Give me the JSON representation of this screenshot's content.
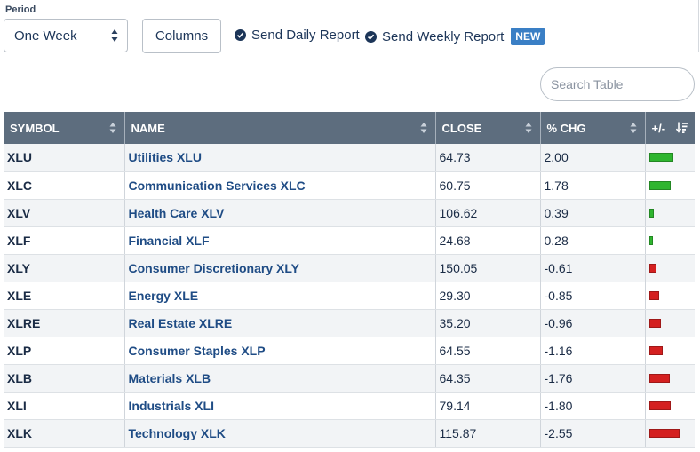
{
  "period": {
    "label": "Period",
    "selected": "One Week"
  },
  "columns_button": "Columns",
  "reports": {
    "daily": "Send Daily Report",
    "weekly": "Send Weekly Report",
    "new_badge": "NEW"
  },
  "search": {
    "placeholder": "Search Table"
  },
  "table": {
    "headers": {
      "symbol": "SYMBOL",
      "name": "NAME",
      "close": "CLOSE",
      "pct_chg": "% CHG",
      "plusminus": "+/-"
    },
    "rows": [
      {
        "symbol": "XLU",
        "name": "Utilities XLU",
        "close": "64.73",
        "pct": "2.00",
        "change": 2.0
      },
      {
        "symbol": "XLC",
        "name": "Communication Services XLC",
        "close": "60.75",
        "pct": "1.78",
        "change": 1.78
      },
      {
        "symbol": "XLV",
        "name": "Health Care XLV",
        "close": "106.62",
        "pct": "0.39",
        "change": 0.39
      },
      {
        "symbol": "XLF",
        "name": "Financial XLF",
        "close": "24.68",
        "pct": "0.28",
        "change": 0.28
      },
      {
        "symbol": "XLY",
        "name": "Consumer Discretionary XLY",
        "close": "150.05",
        "pct": "-0.61",
        "change": -0.61
      },
      {
        "symbol": "XLE",
        "name": "Energy XLE",
        "close": "29.30",
        "pct": "-0.85",
        "change": -0.85
      },
      {
        "symbol": "XLRE",
        "name": "Real Estate XLRE",
        "close": "35.20",
        "pct": "-0.96",
        "change": -0.96
      },
      {
        "symbol": "XLP",
        "name": "Consumer Staples XLP",
        "close": "64.55",
        "pct": "-1.16",
        "change": -1.16
      },
      {
        "symbol": "XLB",
        "name": "Materials XLB",
        "close": "64.35",
        "pct": "-1.76",
        "change": -1.76
      },
      {
        "symbol": "XLI",
        "name": "Industrials XLI",
        "close": "79.14",
        "pct": "-1.80",
        "change": -1.8
      },
      {
        "symbol": "XLK",
        "name": "Technology XLK",
        "close": "115.87",
        "pct": "-2.55",
        "change": -2.55
      }
    ]
  },
  "colors": {
    "positive": "#2fb52f",
    "negative": "#d42020",
    "header_bg": "#5d6d7e",
    "link": "#1f4c85",
    "badge": "#3a7fc5"
  },
  "icons": {
    "check": "check-circle-icon",
    "sort": "sort-arrows-icon",
    "sort_desc": "sort-descending-icon"
  }
}
